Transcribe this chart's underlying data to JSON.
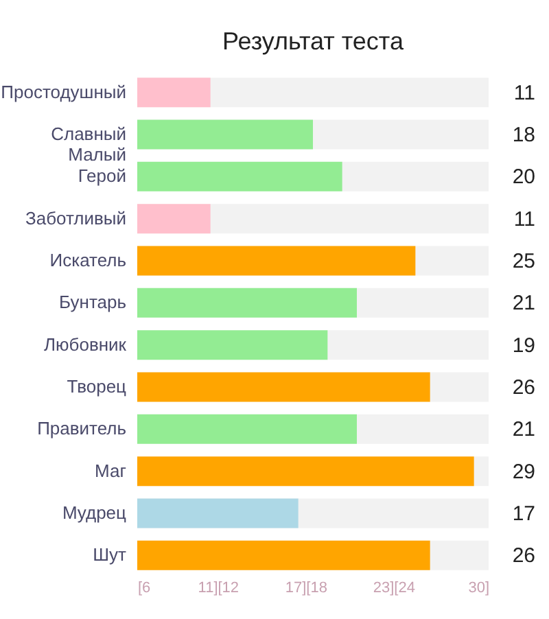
{
  "chart_data": {
    "type": "bar",
    "orientation": "horizontal",
    "title": "Результат теста",
    "categories": [
      "Простодушный",
      "Славный\nМалый",
      "Герой",
      "Заботливый",
      "Искатель",
      "Бунтарь",
      "Любовник",
      "Творец",
      "Правитель",
      "Маг",
      "Мудрец",
      "Шут"
    ],
    "values": [
      11,
      18,
      20,
      11,
      25,
      21,
      19,
      26,
      21,
      29,
      17,
      26
    ],
    "colors": [
      "#ffbfcc",
      "#93ec93",
      "#93ec93",
      "#ffbfcc",
      "#ffa500",
      "#93ec93",
      "#93ec93",
      "#ffa500",
      "#93ec93",
      "#ffa500",
      "#add8e6",
      "#ffa500"
    ],
    "xlim": [
      6,
      30
    ],
    "xticks": [
      {
        "value": 6,
        "label": "[6"
      },
      {
        "value": 11.5,
        "label": "11][12"
      },
      {
        "value": 17.5,
        "label": "17][18"
      },
      {
        "value": 23.5,
        "label": "23][24"
      },
      {
        "value": 30,
        "label": "30]"
      }
    ],
    "data_labels": true,
    "grid": false
  }
}
